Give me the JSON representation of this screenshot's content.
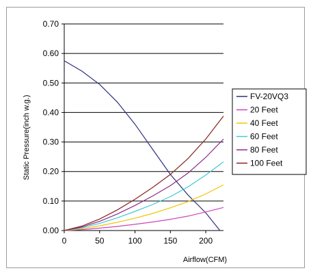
{
  "chart_data": {
    "type": "line",
    "title": "",
    "xlabel": "Airflow(CFM)",
    "ylabel": "Static Pressure(inch w.g.)",
    "xlim": [
      0,
      225
    ],
    "ylim": [
      0,
      0.7
    ],
    "x_ticks": [
      0,
      50,
      100,
      150,
      200
    ],
    "y_ticks": [
      0.0,
      0.1,
      0.2,
      0.3,
      0.4,
      0.5,
      0.6,
      0.7
    ],
    "y_tick_labels": [
      "0.00",
      "0.10",
      "0.20",
      "0.30",
      "0.40",
      "0.50",
      "0.60",
      "0.70"
    ],
    "grid": "horizontal",
    "legend_position": "right",
    "series": [
      {
        "name": "FV-20VQ3",
        "color": "#2e2e80",
        "x": [
          0,
          25,
          50,
          75,
          100,
          125,
          150,
          175,
          200,
          220
        ],
        "y": [
          0.575,
          0.54,
          0.495,
          0.435,
          0.36,
          0.275,
          0.19,
          0.12,
          0.06,
          0.0
        ]
      },
      {
        "name": "20 Feet",
        "color": "#cc44bb",
        "x": [
          0,
          25,
          50,
          75,
          100,
          125,
          150,
          175,
          200,
          225
        ],
        "y": [
          0.0,
          0.003,
          0.008,
          0.014,
          0.021,
          0.029,
          0.038,
          0.049,
          0.063,
          0.078
        ]
      },
      {
        "name": "40 Feet",
        "color": "#f2c400",
        "x": [
          0,
          25,
          50,
          75,
          100,
          125,
          150,
          175,
          200,
          225
        ],
        "y": [
          0.0,
          0.006,
          0.016,
          0.028,
          0.042,
          0.058,
          0.077,
          0.098,
          0.124,
          0.155
        ]
      },
      {
        "name": "60 Feet",
        "color": "#40c8d6",
        "x": [
          0,
          25,
          50,
          75,
          100,
          125,
          150,
          175,
          200,
          225
        ],
        "y": [
          0.0,
          0.009,
          0.024,
          0.043,
          0.065,
          0.088,
          0.115,
          0.148,
          0.188,
          0.233
        ]
      },
      {
        "name": "80 Feet",
        "color": "#8a2a8a",
        "x": [
          0,
          25,
          50,
          75,
          100,
          125,
          150,
          175,
          200,
          225
        ],
        "y": [
          0.0,
          0.012,
          0.031,
          0.056,
          0.085,
          0.117,
          0.152,
          0.195,
          0.248,
          0.31
        ]
      },
      {
        "name": "100 Feet",
        "color": "#8a2020",
        "x": [
          0,
          25,
          50,
          75,
          100,
          125,
          150,
          175,
          200,
          225
        ],
        "y": [
          0.0,
          0.015,
          0.039,
          0.07,
          0.106,
          0.146,
          0.19,
          0.244,
          0.31,
          0.388
        ]
      }
    ]
  },
  "colors": {
    "grid": "#000000",
    "axis": "#000000",
    "frame": "#9a9a9a"
  }
}
